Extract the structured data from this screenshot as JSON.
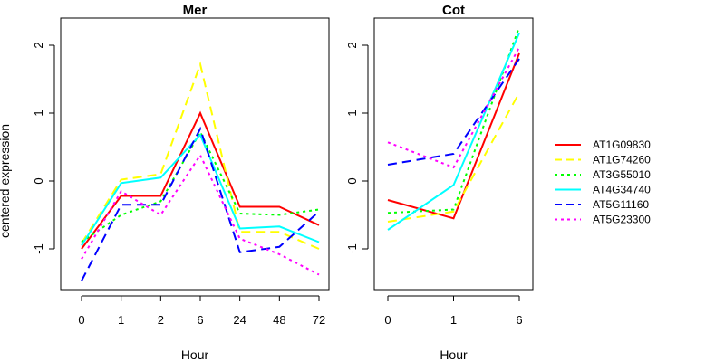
{
  "figure": {
    "ylabel": "centered expression"
  },
  "chart_data": [
    {
      "type": "line",
      "title": "Mer",
      "xlabel": "Hour",
      "ylabel": "centered expression",
      "categories": [
        "0",
        "1",
        "2",
        "6",
        "24",
        "48",
        "72"
      ],
      "ylim": [
        -1.6,
        2.4
      ],
      "yticks": [
        "-1",
        "0",
        "1",
        "2"
      ],
      "series": [
        {
          "name": "AT1G09830",
          "color": "#ff0000",
          "dash": "solid",
          "values": [
            -1.0,
            -0.22,
            -0.22,
            1.0,
            -0.38,
            -0.38,
            -0.65
          ]
        },
        {
          "name": "AT1G74260",
          "color": "#ffff00",
          "dash": "dashed",
          "values": [
            -0.92,
            0.02,
            0.1,
            1.72,
            -0.75,
            -0.75,
            -1.0
          ]
        },
        {
          "name": "AT3G55010",
          "color": "#00ff00",
          "dash": "dotted",
          "values": [
            -0.9,
            -0.5,
            -0.3,
            0.72,
            -0.48,
            -0.5,
            -0.42
          ]
        },
        {
          "name": "AT4G34740",
          "color": "#00ffff",
          "dash": "solid",
          "values": [
            -0.95,
            -0.03,
            0.05,
            0.68,
            -0.7,
            -0.67,
            -0.9
          ]
        },
        {
          "name": "AT5G11160",
          "color": "#0000ff",
          "dash": "dashed",
          "values": [
            -1.47,
            -0.35,
            -0.35,
            0.77,
            -1.05,
            -0.97,
            -0.45
          ]
        },
        {
          "name": "AT5G23300",
          "color": "#ff00ff",
          "dash": "dotted",
          "values": [
            -1.15,
            -0.15,
            -0.5,
            0.38,
            -0.85,
            -1.08,
            -1.38
          ]
        }
      ]
    },
    {
      "type": "line",
      "title": "Cot",
      "xlabel": "Hour",
      "ylabel": "",
      "categories": [
        "0",
        "1",
        "6"
      ],
      "ylim": [
        -1.6,
        2.4
      ],
      "yticks": [
        "-1",
        "0",
        "1",
        "2"
      ],
      "series": [
        {
          "name": "AT1G09830",
          "color": "#ff0000",
          "dash": "solid",
          "values": [
            -0.28,
            -0.55,
            1.88
          ]
        },
        {
          "name": "AT1G74260",
          "color": "#ffff00",
          "dash": "dashed",
          "values": [
            -0.6,
            -0.45,
            1.3
          ]
        },
        {
          "name": "AT3G55010",
          "color": "#00ff00",
          "dash": "dotted",
          "values": [
            -0.47,
            -0.42,
            2.27
          ]
        },
        {
          "name": "AT4G34740",
          "color": "#00ffff",
          "dash": "solid",
          "values": [
            -0.72,
            -0.06,
            2.18
          ]
        },
        {
          "name": "AT5G11160",
          "color": "#0000ff",
          "dash": "dashed",
          "values": [
            0.24,
            0.4,
            1.8
          ]
        },
        {
          "name": "AT5G23300",
          "color": "#ff00ff",
          "dash": "dotted",
          "values": [
            0.57,
            0.2,
            1.97
          ]
        }
      ]
    }
  ],
  "legend": {
    "placement": "right",
    "entries": [
      {
        "label": "AT1G09830",
        "color": "#ff0000",
        "dash": "solid"
      },
      {
        "label": "AT1G74260",
        "color": "#ffff00",
        "dash": "dashed"
      },
      {
        "label": "AT3G55010",
        "color": "#00ff00",
        "dash": "dotted"
      },
      {
        "label": "AT4G34740",
        "color": "#00ffff",
        "dash": "solid"
      },
      {
        "label": "AT5G11160",
        "color": "#0000ff",
        "dash": "dashed"
      },
      {
        "label": "AT5G23300",
        "color": "#ff00ff",
        "dash": "dotted"
      }
    ]
  }
}
